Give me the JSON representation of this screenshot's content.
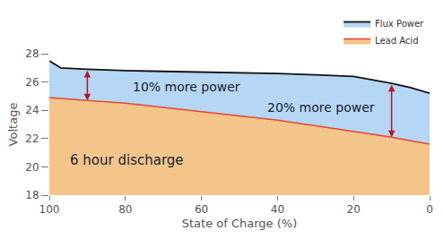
{
  "chart_data": {
    "type": "line",
    "x_label": "State of Charge (%)",
    "y_label": "Voltage",
    "x": [
      100,
      97,
      90,
      80,
      70,
      60,
      50,
      40,
      30,
      20,
      10,
      5,
      0
    ],
    "series": [
      {
        "name": "Flux Power",
        "color": "#111111",
        "values": [
          27.5,
          27.0,
          26.9,
          26.8,
          26.75,
          26.7,
          26.65,
          26.6,
          26.5,
          26.4,
          25.9,
          25.6,
          25.2
        ]
      },
      {
        "name": "Lead Acid",
        "color": "#e8452c",
        "values": [
          24.9,
          24.85,
          24.7,
          24.5,
          24.2,
          23.9,
          23.6,
          23.3,
          22.9,
          22.5,
          22.1,
          21.85,
          21.6
        ]
      }
    ],
    "xlim": [
      100,
      0
    ],
    "xticks": [
      100,
      80,
      60,
      40,
      20,
      0
    ],
    "ylim": [
      18,
      28
    ],
    "yticks": [
      18,
      20,
      22,
      24,
      26,
      28
    ],
    "grid": false,
    "legend": "upper right",
    "annotations": [
      "10% more power",
      "20% more power",
      "6 hour discharge"
    ]
  }
}
